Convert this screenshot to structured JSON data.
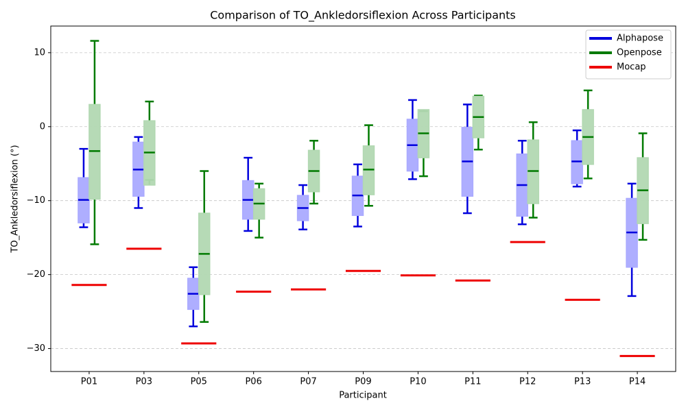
{
  "chart_data": {
    "type": "box",
    "title": "Comparison of TO_Ankledorsiflexion Across Participants",
    "x_label": "Participant",
    "y_label": "TO_Ankledorsiflexion (°)",
    "categories": [
      "P01",
      "P03",
      "P05",
      "P06",
      "P07",
      "P09",
      "P10",
      "P11",
      "P12",
      "P13",
      "P14"
    ],
    "ylim": [
      -33.1,
      13.6
    ],
    "yticks": [
      {
        "value": -30,
        "label": "−30"
      },
      {
        "value": -20,
        "label": "−20"
      },
      {
        "value": -10,
        "label": "−10"
      },
      0,
      10
    ],
    "grid": true,
    "legend": "upper right",
    "series": [
      {
        "name": "Alphapose",
        "color": "#0000dd",
        "fill": "#aaaaff",
        "whislo": [
          -13.6,
          -11.0,
          -27.0,
          -14.1,
          -13.9,
          -13.5,
          -7.1,
          -11.7,
          -13.2,
          -8.1,
          -22.9
        ],
        "q1": [
          -13.0,
          -9.4,
          -24.7,
          -12.5,
          -12.7,
          -12.0,
          -6.0,
          -9.4,
          -12.1,
          -7.7,
          -19.0
        ],
        "med": [
          -9.9,
          -5.8,
          -22.6,
          -9.9,
          -11.0,
          -9.3,
          -2.5,
          -4.7,
          -7.9,
          -4.7,
          -14.3
        ],
        "q3": [
          -6.9,
          -2.1,
          -20.5,
          -7.3,
          -9.3,
          -6.7,
          1.0,
          -0.1,
          -3.7,
          -1.9,
          -9.7
        ],
        "whishi": [
          -3.0,
          -1.4,
          -19.0,
          -4.2,
          -7.9,
          -5.1,
          3.6,
          3.0,
          -1.9,
          -0.5,
          -7.7
        ]
      },
      {
        "name": "Openpose",
        "color": "#007a00",
        "fill": "#b2d8b2",
        "whislo": [
          -15.9,
          -7.2,
          -26.4,
          -15.0,
          -10.4,
          -10.7,
          -6.7,
          -3.1,
          -12.3,
          -7.0,
          -15.3
        ],
        "q1": [
          -9.8,
          -7.9,
          -22.7,
          -12.5,
          -8.8,
          -9.2,
          -4.2,
          -1.5,
          -10.4,
          -5.1,
          -13.1
        ],
        "med": [
          -3.3,
          -3.5,
          -17.2,
          -10.4,
          -6.0,
          -5.8,
          -0.9,
          1.3,
          -6.0,
          -1.4,
          -8.6
        ],
        "q3": [
          3.0,
          0.8,
          -11.7,
          -8.4,
          -3.2,
          -2.6,
          2.3,
          4.1,
          -1.8,
          2.3,
          -4.2
        ],
        "whishi": [
          11.6,
          3.4,
          -6.0,
          -7.7,
          -1.9,
          0.2,
          2.1,
          4.2,
          0.6,
          4.9,
          -0.9
        ]
      },
      {
        "name": "Mocap",
        "color": "#ee0000",
        "values": [
          -21.4,
          -16.5,
          -29.3,
          -22.3,
          -22.0,
          -19.5,
          -20.1,
          -20.8,
          -15.6,
          -23.4,
          -31.0
        ]
      }
    ]
  }
}
